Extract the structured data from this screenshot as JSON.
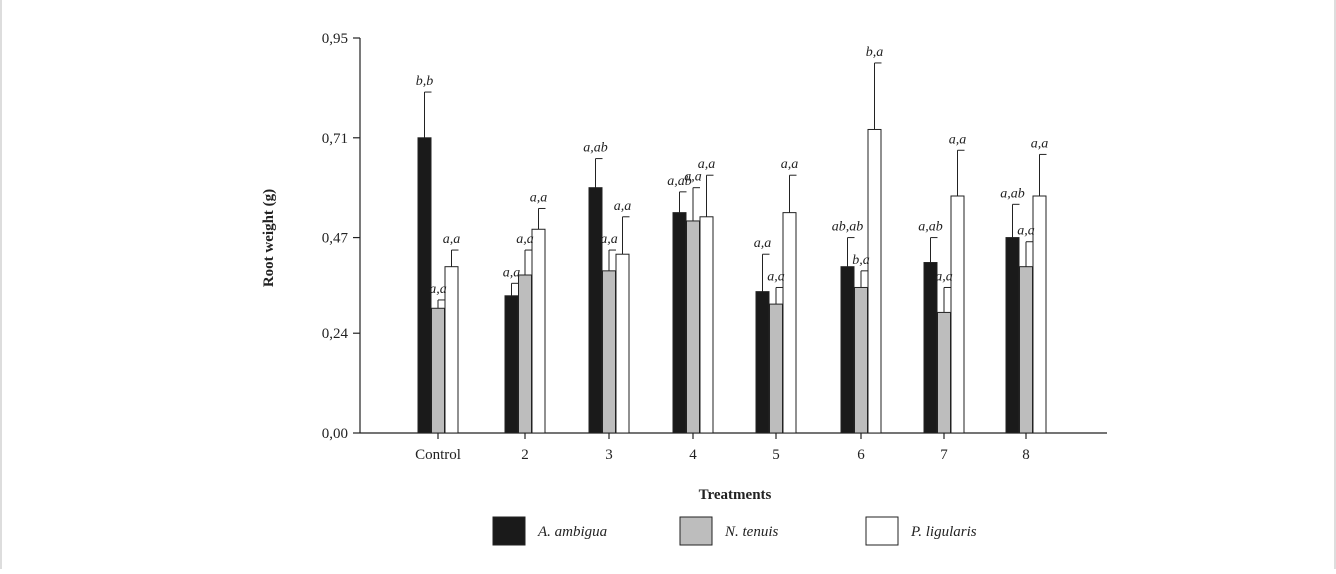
{
  "chart_data": {
    "type": "bar",
    "xlabel": "Treatments",
    "ylabel": "Root weight (g)",
    "ylim": [
      0,
      0.95
    ],
    "yticks": [
      "0,00",
      "0,24",
      "0,47",
      "0,71",
      "0,95"
    ],
    "ytick_values": [
      0,
      0.24,
      0.47,
      0.71,
      0.95
    ],
    "grid": false,
    "legend_position": "bottom",
    "categories": [
      "Control",
      "2",
      "3",
      "4",
      "5",
      "6",
      "7",
      "8"
    ],
    "series": [
      {
        "name": "A. ambigua",
        "color": "#1a1a1a",
        "values": [
          0.71,
          0.33,
          0.59,
          0.53,
          0.34,
          0.4,
          0.41,
          0.47
        ],
        "errors": [
          0.11,
          0.03,
          0.07,
          0.05,
          0.09,
          0.07,
          0.06,
          0.08
        ],
        "labels": [
          "b,b",
          "a,a",
          "a,ab",
          "a,ab",
          "a,a",
          "ab,ab",
          "a,ab",
          "a,ab"
        ]
      },
      {
        "name": "N. tenuis",
        "color": "#bdbdbd",
        "values": [
          0.3,
          0.38,
          0.39,
          0.51,
          0.31,
          0.35,
          0.29,
          0.4
        ],
        "errors": [
          0.02,
          0.06,
          0.05,
          0.08,
          0.04,
          0.04,
          0.06,
          0.06
        ],
        "labels": [
          "a,a",
          "a,a",
          "a,a",
          "a,a",
          "a,a",
          "b,a",
          "a,a",
          "a,a"
        ]
      },
      {
        "name": "P. ligularis",
        "color": "#ffffff",
        "values": [
          0.4,
          0.49,
          0.43,
          0.52,
          0.53,
          0.73,
          0.57,
          0.57
        ],
        "errors": [
          0.04,
          0.05,
          0.09,
          0.1,
          0.09,
          0.16,
          0.11,
          0.1
        ],
        "labels": [
          "a,a",
          "a,a",
          "a,a",
          "a,a",
          "a,a",
          "b,a",
          "a,a",
          "a,a"
        ]
      }
    ]
  }
}
